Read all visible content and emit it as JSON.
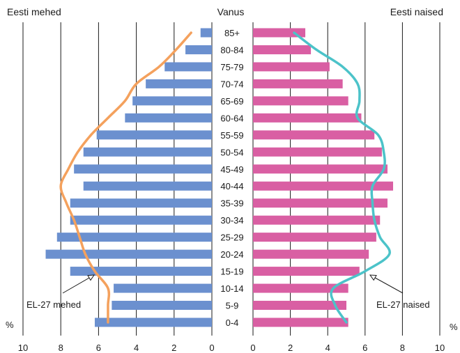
{
  "chart_data": {
    "type": "bar",
    "title_left": "Eesti mehed",
    "title_center": "Vanus",
    "title_right": "Eesti naised",
    "unit_left": "%",
    "unit_right": "%",
    "categories": [
      "85+",
      "80-84",
      "75-79",
      "70-74",
      "65-69",
      "60-64",
      "55-59",
      "50-54",
      "45-49",
      "40-44",
      "35-39",
      "30-34",
      "25-29",
      "20-24",
      "15-19",
      "10-14",
      "5-9",
      "0-4"
    ],
    "x_left": {
      "ticks": [
        "10",
        "8",
        "6",
        "4",
        "2",
        "0"
      ],
      "range": [
        10,
        0
      ]
    },
    "x_right": {
      "ticks": [
        "0",
        "2",
        "4",
        "6",
        "8",
        "10"
      ],
      "range": [
        0,
        10
      ]
    },
    "grid": true,
    "series": [
      {
        "name": "",
        "side": "left",
        "kind": "bar",
        "color": "#6b90cf",
        "values": [
          0.6,
          1.4,
          2.5,
          3.5,
          4.2,
          4.6,
          6.1,
          6.8,
          7.3,
          6.8,
          7.5,
          7.5,
          8.2,
          8.8,
          7.5,
          5.2,
          5.3,
          6.2
        ]
      },
      {
        "name": "",
        "side": "right",
        "kind": "bar",
        "color": "#d95fa3",
        "values": [
          2.8,
          3.1,
          4.1,
          4.8,
          5.1,
          5.8,
          6.5,
          6.9,
          7.2,
          7.5,
          7.2,
          6.8,
          6.6,
          6.2,
          5.7,
          5.1,
          5.0,
          5.1
        ]
      },
      {
        "name": "EL-27 mehed",
        "side": "left",
        "kind": "line",
        "color": "#f4a15d",
        "values": [
          1.1,
          1.9,
          2.8,
          4.0,
          4.6,
          5.5,
          6.4,
          7.1,
          7.6,
          8.0,
          7.7,
          7.3,
          7.0,
          6.7,
          6.2,
          5.5,
          5.5,
          5.5
        ]
      },
      {
        "name": "EL-27 naised",
        "side": "right",
        "kind": "line",
        "color": "#4cc3c9",
        "values": [
          2.2,
          3.4,
          4.8,
          5.6,
          5.7,
          5.6,
          6.7,
          7.0,
          7.0,
          6.4,
          6.4,
          6.5,
          6.8,
          7.3,
          6.0,
          4.3,
          4.4,
          5.0
        ]
      }
    ],
    "annotations": [
      {
        "text": "EL-27 mehed",
        "side": "left"
      },
      {
        "text": "EL-27 naised",
        "side": "right"
      }
    ]
  }
}
